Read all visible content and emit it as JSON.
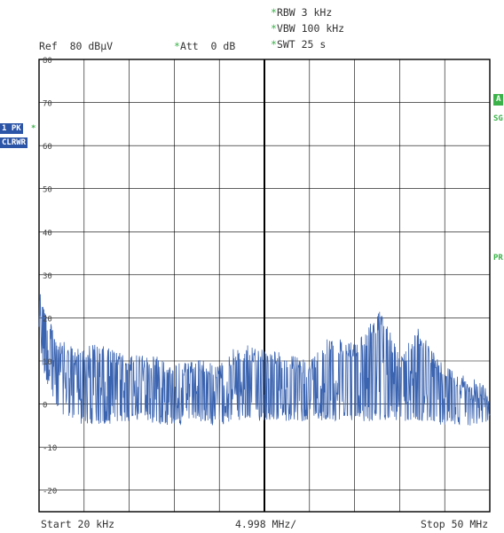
{
  "header": {
    "rbw": "RBW 3 kHz",
    "vbw": "VBW 100 kHz",
    "swt": "SWT 25 s",
    "ref": "Ref  80 dBµV",
    "att": "Att  0 dB",
    "star": "*"
  },
  "trace_badge": {
    "line1": "1 PK",
    "line2": "CLRWR",
    "star": "*"
  },
  "side_flags": {
    "a": "A",
    "sgl": "SG",
    "pr": "PR"
  },
  "footer": {
    "start": "Start 20 kHz",
    "span_per_div": "4.998 MHz/",
    "stop": "Stop 50 MHz"
  },
  "colors": {
    "trace": "#3a63b0",
    "grid": "#000000",
    "badge_bg": "#2c55a8",
    "flag_green": "#3cb34a"
  },
  "chart_data": {
    "type": "line",
    "xlim": [
      0.02,
      50
    ],
    "ylim": [
      -25,
      80
    ],
    "ytick_labels": [
      "80",
      "70",
      "60",
      "50",
      "40",
      "30",
      "20",
      "10",
      "0",
      "-10",
      "-20"
    ],
    "grid": true,
    "series": [
      {
        "x": [
          0.02,
          0.5,
          1.0,
          2.0,
          3.0,
          4.0,
          5.0,
          6.0,
          8.0,
          10.0,
          12.0,
          14.0,
          15.0,
          17.0,
          20.0,
          22.0,
          25.0,
          27.0,
          30.0,
          32.0,
          35.0,
          38.0,
          40.0,
          42.0,
          45.0,
          48.0,
          50.0
        ],
        "floor": [
          15,
          10,
          5,
          1,
          -1,
          -2,
          -3,
          -3,
          -3,
          -2,
          -2,
          -3,
          -3,
          -3,
          -3,
          -2,
          -2,
          -2,
          -2,
          -2,
          -2,
          -2,
          -2,
          -2,
          -3,
          -3,
          -2
        ],
        "peak": [
          31,
          24,
          20,
          16,
          14,
          13,
          14,
          14,
          13,
          11,
          12,
          11,
          9,
          11,
          9,
          14,
          13,
          12,
          10,
          16,
          14,
          22,
          11,
          18,
          9,
          6,
          4
        ]
      }
    ]
  }
}
